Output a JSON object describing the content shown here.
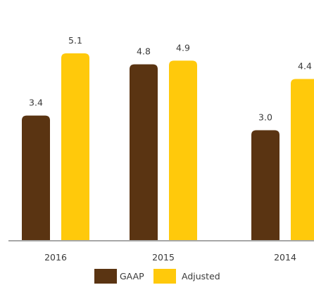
{
  "chart_data": {
    "type": "bar",
    "categories": [
      "2016",
      "2015",
      "2014"
    ],
    "series": [
      {
        "name": "GAAP",
        "values": [
          3.4,
          4.8,
          3.0
        ],
        "color": "#5a3412"
      },
      {
        "name": "Adjusted",
        "values": [
          5.1,
          4.9,
          4.4
        ],
        "color": "#ffc90b"
      }
    ],
    "value_labels": [
      [
        "3.4",
        "4.8",
        "3.0"
      ],
      [
        "5.1",
        "4.9",
        "4.4"
      ]
    ],
    "ylim": [
      0,
      5.1
    ],
    "grid": false,
    "legend_position": "bottom",
    "axis_color": "#8a8a8a"
  }
}
